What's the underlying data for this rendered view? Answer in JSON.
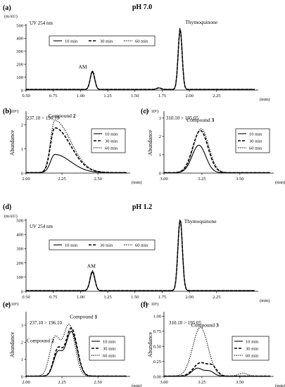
{
  "figure": {
    "sections": [
      {
        "header": "pH 7.0"
      },
      {
        "header": "pH 1.2"
      }
    ]
  },
  "chart_data": [
    {
      "id": "a",
      "type": "line",
      "panel_label": "(a)",
      "title": "pH 7.0",
      "detector": "UV 254 nm",
      "yunit": "(mAU)",
      "xlabel": "(min)",
      "ylabel": "",
      "xlim": [
        0.5,
        2.6
      ],
      "ylim": [
        0,
        500
      ],
      "xticks": [
        0.5,
        0.75,
        1.0,
        1.25,
        1.5,
        1.75,
        2.0,
        2.25
      ],
      "xtick_labels": [
        "0.50",
        "0.75",
        "1.00",
        "1.25",
        "1.50",
        "1.75",
        "2.00",
        "2.25"
      ],
      "yticks": [
        0,
        100,
        200,
        300,
        400,
        500
      ],
      "ytick_labels": [
        "0",
        "100",
        "200",
        "300",
        "400",
        "500"
      ],
      "legend_position": "top-center",
      "annotations": [
        {
          "text": "AM",
          "x": 1.02,
          "y": 165
        },
        {
          "text": "Thymoquinone",
          "x": 2.11,
          "y": 510
        }
      ],
      "series": [
        {
          "name": "10 min",
          "style": "solid",
          "baseline": 5,
          "peaks": [
            {
              "center": 1.11,
              "height": 140,
              "width": 0.02
            },
            {
              "center": 1.72,
              "height": 12,
              "width": 0.02
            },
            {
              "center": 1.915,
              "height": 465,
              "width": 0.018
            }
          ]
        },
        {
          "name": "30 min",
          "style": "dashed",
          "baseline": 5,
          "peaks": [
            {
              "center": 1.11,
              "height": 140,
              "width": 0.02
            },
            {
              "center": 1.72,
              "height": 12,
              "width": 0.02
            },
            {
              "center": 1.915,
              "height": 470,
              "width": 0.018
            }
          ]
        },
        {
          "name": "60 min",
          "style": "dotted",
          "baseline": 5,
          "peaks": [
            {
              "center": 1.11,
              "height": 145,
              "width": 0.02
            },
            {
              "center": 1.72,
              "height": 12,
              "width": 0.02
            },
            {
              "center": 1.915,
              "height": 480,
              "width": 0.018
            }
          ]
        }
      ]
    },
    {
      "id": "b",
      "type": "line",
      "panel_label": "(b)",
      "title": "237.10 > 196.10",
      "yunit": "(× 10⁶)",
      "ylabel": "Abundance",
      "xlabel": "(min)",
      "xlim": [
        2.0,
        2.7
      ],
      "ylim": [
        0,
        2.5
      ],
      "xticks": [
        2.0,
        2.25,
        2.5
      ],
      "xtick_labels": [
        "2.00",
        "2.25",
        "2.50"
      ],
      "yticks": [
        0,
        1,
        2
      ],
      "ytick_labels": [
        "0",
        "1",
        "2"
      ],
      "legend_position": "right",
      "annotations": [
        {
          "text": "Compound 2",
          "x": 2.25,
          "y": 2.3
        }
      ],
      "series": [
        {
          "name": "10 min",
          "style": "solid",
          "baseline": 0.02,
          "peaks": [
            {
              "center": 2.2,
              "height": 0.75,
              "width": 0.03,
              "tail": 0.11
            }
          ]
        },
        {
          "name": "30 min",
          "style": "dashed",
          "baseline": 0.02,
          "peaks": [
            {
              "center": 2.2,
              "height": 1.85,
              "width": 0.03,
              "tail": 0.11
            }
          ]
        },
        {
          "name": "60 min",
          "style": "dotted",
          "baseline": 0.02,
          "peaks": [
            {
              "center": 2.2,
              "height": 2.15,
              "width": 0.03,
              "tail": 0.11
            }
          ]
        }
      ]
    },
    {
      "id": "c",
      "type": "line",
      "panel_label": "(c)",
      "title": "310.10 > 195.05",
      "yunit": "(× 10⁶)",
      "ylabel": "Abundance",
      "xlabel": "(min)",
      "xlim": [
        3.0,
        3.7
      ],
      "ylim": [
        0,
        3.3
      ],
      "xticks": [
        3.0,
        3.25,
        3.5
      ],
      "xtick_labels": [
        "3.00",
        "3.25",
        "3.50"
      ],
      "yticks": [
        0,
        1,
        2,
        3
      ],
      "ytick_labels": [
        "0",
        "1",
        "2",
        "3"
      ],
      "legend_position": "right",
      "annotations": [
        {
          "text": "Compound 3",
          "x": 3.24,
          "y": 2.8
        }
      ],
      "series": [
        {
          "name": "10 min",
          "style": "solid",
          "baseline": 0.02,
          "peaks": [
            {
              "center": 3.23,
              "height": 1.5,
              "width": 0.045
            }
          ]
        },
        {
          "name": "30 min",
          "style": "dashed",
          "baseline": 0.02,
          "peaks": [
            {
              "center": 3.24,
              "height": 2.3,
              "width": 0.05
            }
          ]
        },
        {
          "name": "60 min",
          "style": "dotted",
          "baseline": 0.02,
          "peaks": [
            {
              "center": 3.245,
              "height": 2.4,
              "width": 0.05
            }
          ]
        }
      ]
    },
    {
      "id": "d",
      "type": "line",
      "panel_label": "(d)",
      "title": "pH 1.2",
      "detector": "UV 254 nm",
      "yunit": "(mAU)",
      "xlabel": "(min)",
      "xlim": [
        0.5,
        2.6
      ],
      "ylim": [
        0,
        500
      ],
      "xticks": [
        0.5,
        0.75,
        1.0,
        1.25,
        1.5,
        1.75,
        2.0,
        2.25
      ],
      "xtick_labels": [
        "0.50",
        "0.75",
        "1.00",
        "1.25",
        "1.50",
        "1.75",
        "2.00",
        "2.25"
      ],
      "yticks": [
        0,
        100,
        200,
        300,
        400,
        500
      ],
      "ytick_labels": [
        "0",
        "100",
        "200",
        "300",
        "400",
        "500"
      ],
      "legend_position": "center",
      "annotations": [
        {
          "text": "AM",
          "x": 1.1,
          "y": 165
        },
        {
          "text": "Thymoquinone",
          "x": 2.1,
          "y": 480
        }
      ],
      "series": [
        {
          "name": "10 min",
          "style": "solid",
          "baseline": 5,
          "peaks": [
            {
              "center": 1.11,
              "height": 130,
              "width": 0.022
            },
            {
              "center": 1.915,
              "height": 510,
              "width": 0.02
            }
          ]
        },
        {
          "name": "30 min",
          "style": "dashed",
          "baseline": 5,
          "peaks": [
            {
              "center": 1.11,
              "height": 135,
              "width": 0.022
            },
            {
              "center": 1.915,
              "height": 510,
              "width": 0.02
            }
          ]
        },
        {
          "name": "60 min",
          "style": "dotted",
          "baseline": 5,
          "peaks": [
            {
              "center": 1.11,
              "height": 140,
              "width": 0.022
            },
            {
              "center": 1.915,
              "height": 520,
              "width": 0.02
            }
          ]
        }
      ]
    },
    {
      "id": "e",
      "type": "line",
      "panel_label": "(e)",
      "title": "237.10 > 196.10",
      "yunit": "(× 10⁵)",
      "ylabel": "Abundance",
      "xlabel": "(min)",
      "xlim": [
        2.0,
        2.7
      ],
      "ylim": [
        0,
        3.7
      ],
      "xticks": [
        2.0,
        2.25,
        2.5
      ],
      "xtick_labels": [
        "2.00",
        "2.25",
        "2.50"
      ],
      "yticks": [
        0,
        1,
        2,
        3
      ],
      "ytick_labels": [
        "0",
        "1",
        "2",
        "3"
      ],
      "legend_position": "right",
      "annotations": [
        {
          "text": "Compound 1",
          "x": 2.4,
          "y": 3.4
        },
        {
          "text": "Compound 2",
          "x": 2.1,
          "y": 2.0
        }
      ],
      "series": [
        {
          "name": "10 min",
          "style": "solid",
          "baseline": 0.02,
          "peaks": [
            {
              "center": 2.22,
              "height": 1.3,
              "width": 0.03
            },
            {
              "center": 2.315,
              "height": 2.6,
              "width": 0.04
            }
          ]
        },
        {
          "name": "30 min",
          "style": "dashed",
          "baseline": 0.02,
          "peaks": [
            {
              "center": 2.22,
              "height": 1.5,
              "width": 0.03
            },
            {
              "center": 2.315,
              "height": 2.8,
              "width": 0.04
            }
          ]
        },
        {
          "name": "60 min",
          "style": "dotted",
          "baseline": 0.02,
          "peaks": [
            {
              "center": 2.2,
              "height": 2.2,
              "width": 0.035
            },
            {
              "center": 2.3,
              "height": 3.0,
              "width": 0.04
            }
          ]
        }
      ]
    },
    {
      "id": "f",
      "type": "line",
      "panel_label": "(f)",
      "title": "310.10 > 195.05",
      "yunit": "(× 10⁵)",
      "ylabel": "Abundance",
      "xlabel": "(min)",
      "xlim": [
        3.0,
        3.7
      ],
      "ylim": [
        0,
        1.05
      ],
      "xticks": [
        3.0,
        3.25,
        3.5
      ],
      "xtick_labels": [
        "3.00",
        "3.25",
        "3.50"
      ],
      "yticks": [
        0.0,
        0.25,
        0.5,
        0.75,
        1.0
      ],
      "ytick_labels": [
        "0.00",
        "0.25",
        "0.50",
        "0.75",
        "1.00"
      ],
      "legend_position": "right",
      "annotations": [
        {
          "text": "Compound 3",
          "x": 3.27,
          "y": 0.82
        }
      ],
      "series": [
        {
          "name": "10 min",
          "style": "solid",
          "baseline": 0.005,
          "peaks": [
            {
              "center": 3.22,
              "height": 0.13,
              "width": 0.035
            },
            {
              "center": 3.3,
              "height": 0.08,
              "width": 0.03
            }
          ]
        },
        {
          "name": "30 min",
          "style": "dashed",
          "baseline": 0.005,
          "peaks": [
            {
              "center": 3.24,
              "height": 0.22,
              "width": 0.045
            },
            {
              "center": 3.32,
              "height": 0.14,
              "width": 0.03
            }
          ]
        },
        {
          "name": "60 min",
          "style": "dotted",
          "baseline": 0.005,
          "peaks": [
            {
              "center": 3.24,
              "height": 0.81,
              "width": 0.05
            },
            {
              "center": 3.52,
              "height": 0.05,
              "width": 0.03
            }
          ]
        }
      ]
    }
  ]
}
